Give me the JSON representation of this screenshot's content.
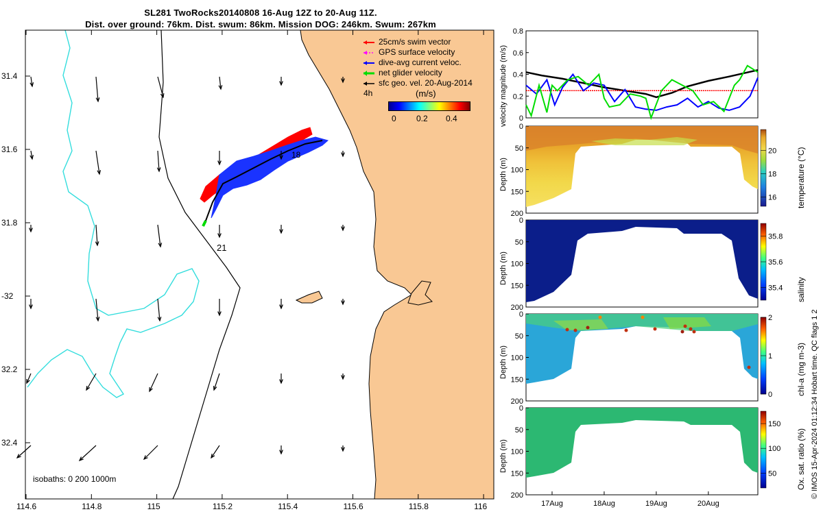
{
  "title_line1": "SL281 TwoRocks20140808 16-Aug 12Z to 20-Aug 11Z.",
  "title_line2": "Dist. over ground: 76km. Dist. swum: 86km. Mission DOG: 246km. Swum: 267km",
  "legend": [
    {
      "label": "25cm/s swim vector",
      "color": "#ff0000"
    },
    {
      "label": "GPS surface velocity",
      "color": "#ff00ff"
    },
    {
      "label": "dive-avg current veloc.",
      "color": "#0000ff"
    },
    {
      "label": "net glider velocity",
      "color": "#00dd00"
    },
    {
      "label": "sfc geo. vel. 20-Aug-2014",
      "color": "#000000"
    }
  ],
  "legend_time": "4h",
  "colorbar": {
    "title": "(m/s)",
    "ticks": [
      "0",
      "0.2",
      "0.4"
    ]
  },
  "isobaths_label": "isobaths: 0   200  1000m",
  "track_labels": [
    "18",
    "21"
  ],
  "map_xticks": [
    "114.6",
    "114.8",
    "115",
    "115.2",
    "115.4",
    "115.6",
    "115.8",
    "116"
  ],
  "map_yticks": [
    "31.4",
    "31.6",
    "31.8",
    "-32",
    "32.2",
    "32.4"
  ],
  "copyright": "© IMOS 15-Apr-2024 01:12:34 Hobart time. QC flags 1  2",
  "chart_data": [
    {
      "type": "line",
      "title": "velocity magnitude",
      "ylabel": "velocity magnitude (m/s)",
      "ylim": [
        0,
        0.8
      ],
      "yticks": [
        "0",
        "0.2",
        "0.4",
        "0.6",
        "0.8"
      ],
      "x_range": [
        16.5,
        20.95
      ],
      "xticks": [
        "17Aug",
        "18Aug",
        "19Aug",
        "20Aug"
      ],
      "series": [
        {
          "name": "sfc geo. vel.",
          "color": "#000000",
          "x": [
            16.5,
            16.8,
            17.2,
            17.6,
            18.0,
            18.4,
            18.8,
            19.0,
            19.3,
            19.6,
            20.0,
            20.4,
            20.95
          ],
          "y": [
            0.42,
            0.39,
            0.36,
            0.32,
            0.28,
            0.25,
            0.22,
            0.19,
            0.23,
            0.29,
            0.34,
            0.38,
            0.44
          ]
        },
        {
          "name": "swim vector",
          "color": "#ff0000",
          "x": [
            16.5,
            20.95
          ],
          "y": [
            0.25,
            0.25
          ]
        },
        {
          "name": "dive-avg current",
          "color": "#0000ff",
          "x": [
            16.5,
            16.7,
            16.9,
            17.05,
            17.2,
            17.4,
            17.6,
            17.8,
            18.0,
            18.2,
            18.4,
            18.6,
            18.8,
            19.0,
            19.2,
            19.4,
            19.6,
            19.8,
            20.0,
            20.2,
            20.4,
            20.6,
            20.8,
            20.95
          ],
          "y": [
            0.3,
            0.22,
            0.35,
            0.12,
            0.28,
            0.4,
            0.25,
            0.32,
            0.3,
            0.15,
            0.26,
            0.1,
            0.08,
            0.07,
            0.1,
            0.12,
            0.18,
            0.1,
            0.15,
            0.09,
            0.07,
            0.1,
            0.2,
            0.37
          ]
        },
        {
          "name": "net glider velocity",
          "color": "#00dd00",
          "x": [
            16.5,
            16.6,
            16.75,
            16.9,
            17.0,
            17.1,
            17.3,
            17.5,
            17.7,
            17.9,
            18.0,
            18.1,
            18.3,
            18.5,
            18.7,
            18.8,
            18.9,
            19.1,
            19.3,
            19.5,
            19.7,
            19.9,
            20.1,
            20.3,
            20.5,
            20.6,
            20.75,
            20.95
          ],
          "y": [
            0.12,
            0.02,
            0.3,
            0.05,
            0.3,
            0.25,
            0.35,
            0.38,
            0.3,
            0.4,
            0.18,
            0.1,
            0.12,
            0.22,
            0.2,
            0.18,
            0.0,
            0.25,
            0.35,
            0.3,
            0.25,
            0.12,
            0.15,
            0.06,
            0.3,
            0.35,
            0.48,
            0.42
          ]
        }
      ]
    },
    {
      "type": "heatmap",
      "ylabel": "Depth (m)",
      "ylim": [
        200,
        0
      ],
      "yticks": [
        "0",
        "50",
        "100",
        "150",
        "200"
      ],
      "cbar_label": "temperature (°C)",
      "cbar_ticks": [
        "16",
        "18",
        "20"
      ],
      "cbar_range": [
        15.2,
        21.8
      ]
    },
    {
      "type": "heatmap",
      "ylabel": "Depth (m)",
      "ylim": [
        200,
        0
      ],
      "yticks": [
        "0",
        "50",
        "100",
        "150",
        "200"
      ],
      "cbar_label": "salinity",
      "cbar_ticks": [
        "35.4",
        "35.6",
        "35.8"
      ],
      "cbar_range": [
        35.3,
        35.9
      ]
    },
    {
      "type": "heatmap",
      "ylabel": "Depth (m)",
      "ylim": [
        200,
        0
      ],
      "yticks": [
        "0",
        "50",
        "100",
        "150",
        "200"
      ],
      "cbar_label": "chl-a (mg m-3)",
      "cbar_ticks": [
        "0",
        "1",
        "2"
      ],
      "cbar_range": [
        0,
        2
      ]
    },
    {
      "type": "heatmap",
      "ylabel": "Depth (m)",
      "ylim": [
        200,
        0
      ],
      "yticks": [
        "0",
        "50",
        "100",
        "150",
        "200"
      ],
      "cbar_label": "Ox. sat. ratio (%)",
      "cbar_ticks": [
        "50",
        "100",
        "150"
      ],
      "cbar_range": [
        20,
        175
      ]
    }
  ]
}
